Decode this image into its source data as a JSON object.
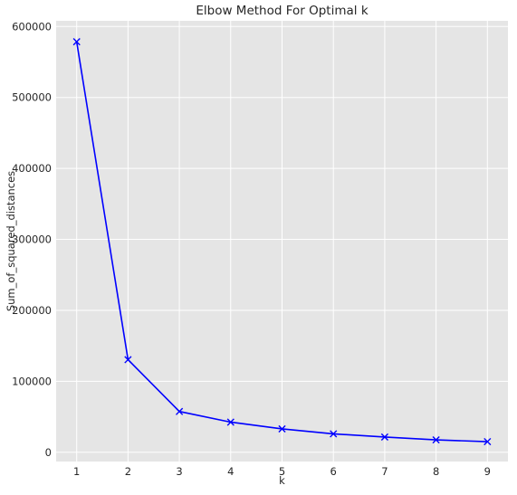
{
  "chart_data": {
    "type": "line",
    "title": "Elbow Method For Optimal k",
    "xlabel": "k",
    "ylabel": "Sum_of_squared_distances",
    "x": [
      1,
      2,
      3,
      4,
      5,
      6,
      7,
      8,
      9
    ],
    "series": [
      {
        "values": [
          578500,
          130500,
          57500,
          42500,
          33000,
          26000,
          21500,
          17500,
          15000
        ],
        "color": "#0000ff",
        "marker": "x"
      }
    ],
    "xticks": [
      "1",
      "2",
      "3",
      "4",
      "5",
      "6",
      "7",
      "8",
      "9"
    ],
    "yticks": [
      "0",
      "100000",
      "200000",
      "300000",
      "400000",
      "500000",
      "600000"
    ],
    "ytick_values": [
      0,
      100000,
      200000,
      300000,
      400000,
      500000,
      600000
    ],
    "xlim": [
      0.6,
      9.4
    ],
    "ylim": [
      -13000,
      608000
    ],
    "grid": true,
    "plot_background": "#e5e5e5",
    "grid_color": "#ffffff"
  }
}
